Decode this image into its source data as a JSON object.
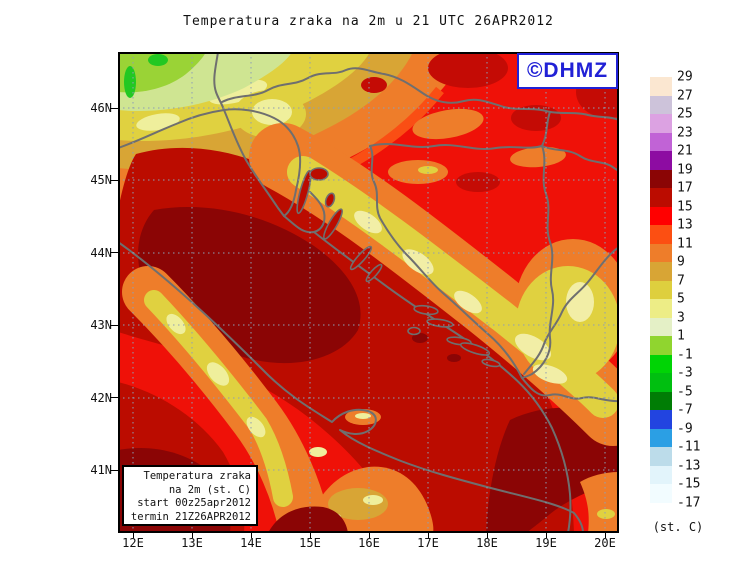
{
  "title": "Temperatura zraka na 2m u 21 UTC 26APR2012",
  "branding": {
    "logo_text": "©DHMZ",
    "logo_color": "#2121d6"
  },
  "legend_box": {
    "lines": [
      "Temperatura zraka",
      "na 2m (st. C)",
      "start 00z25apr2012",
      "termin 21Z26APR2012"
    ]
  },
  "axes": {
    "lat_labels": [
      "46N",
      "45N",
      "44N",
      "43N",
      "42N",
      "41N"
    ],
    "lon_labels": [
      "12E",
      "13E",
      "14E",
      "15E",
      "16E",
      "17E",
      "18E",
      "19E",
      "20E"
    ]
  },
  "colorbar": {
    "unit_label": "(st. C)",
    "labels": [
      "29",
      "27",
      "25",
      "23",
      "21",
      "19",
      "17",
      "15",
      "13",
      "11",
      "9",
      "7",
      "5",
      "3",
      "1",
      "-1",
      "-3",
      "-5",
      "-7",
      "-9",
      "-11",
      "-13",
      "-15",
      "-17"
    ],
    "colors": [
      "#fbe7d1",
      "#cdc3da",
      "#dca2e2",
      "#c163d6",
      "#8d0ca2",
      "#8b0505",
      "#bb0c00",
      "#ff0000",
      "#fc4f12",
      "#ee7d2a",
      "#d8a535",
      "#decf3e",
      "#eded86",
      "#e4f0c6",
      "#90d52f",
      "#00d405",
      "#00bf10",
      "#007d05",
      "#2244e0",
      "#2b9fe4",
      "#bcdcea",
      "#e2f4fb",
      "#f2fcff"
    ]
  },
  "map_colors": {
    "base_red": "#ef1108",
    "dark_red": "#bb0c00",
    "maroon": "#8b0505",
    "orange": "#ee7d2a",
    "ochre": "#d8a535",
    "yellow": "#e0d140",
    "pale_yellow": "#efef9c",
    "green": "#22c822",
    "border_gray": "#6f6f6f"
  }
}
